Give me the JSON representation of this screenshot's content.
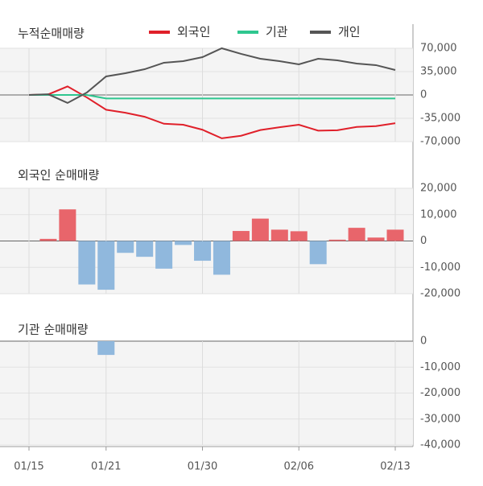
{
  "chart_data": [
    {
      "type": "line",
      "title": "누적순매매량",
      "categories": [
        "01/15",
        null,
        null,
        null,
        "01/21",
        null,
        null,
        null,
        null,
        "01/30",
        null,
        null,
        null,
        null,
        "02/06",
        null,
        null,
        null,
        null,
        "02/13"
      ],
      "series": [
        {
          "name": "외국인",
          "color": "#e0202a",
          "values": [
            0,
            800,
            12800,
            -3700,
            -22200,
            -26700,
            -32700,
            -43200,
            -44700,
            -52200,
            -65000,
            -61200,
            -52700,
            -48400,
            -44700,
            -53500,
            -53000,
            -48000,
            -46700,
            -42400
          ]
        },
        {
          "name": "기관",
          "color": "#2ec68f",
          "values": [
            0,
            0,
            0,
            0,
            -5300,
            -5300,
            -5300,
            -5300,
            -5300,
            -5300,
            -5300,
            -5300,
            -5300,
            -5300,
            -5300,
            -5300,
            -5300,
            -5300,
            -5300,
            -5300
          ]
        },
        {
          "name": "개인",
          "color": "#555555",
          "values": [
            0,
            1000,
            -12000,
            3600,
            27800,
            32600,
            38600,
            48300,
            50700,
            56700,
            70000,
            61600,
            54300,
            50700,
            45900,
            54300,
            51900,
            47100,
            44700,
            37400
          ]
        }
      ],
      "ylim": [
        -70000,
        70000
      ],
      "yticks": [
        {
          "value": 70000,
          "label": "70,000"
        },
        {
          "value": 35000,
          "label": "35,000"
        },
        0,
        {
          "value": -35000,
          "label": "-35,000"
        },
        {
          "value": -70000,
          "label": "-70,000"
        }
      ]
    },
    {
      "type": "bar",
      "title": "외국인 순매매량",
      "color": "#e8656b",
      "negative_color": "#90b8dd",
      "values": [
        0,
        800,
        12000,
        -16500,
        -18500,
        -4500,
        -6000,
        -10500,
        -1500,
        -7500,
        -12800,
        3800,
        8500,
        4300,
        3700,
        -8800,
        500,
        5000,
        1300,
        4300
      ],
      "ylim": [
        -20000,
        20000
      ],
      "yticks": [
        {
          "value": 20000,
          "label": "20,000"
        },
        {
          "value": 10000,
          "label": "10,000"
        },
        0,
        {
          "value": -10000,
          "label": "-10,000"
        },
        {
          "value": -20000,
          "label": "-20,000"
        }
      ]
    },
    {
      "type": "bar",
      "title": "기관 순매매량",
      "color": "#e8656b",
      "negative_color": "#90b8dd",
      "values": [
        0,
        0,
        0,
        0,
        -5300,
        0,
        0,
        0,
        0,
        0,
        0,
        0,
        0,
        0,
        0,
        0,
        0,
        0,
        0,
        0
      ],
      "ylim": [
        -40000,
        0
      ],
      "yticks": [
        0,
        {
          "value": -10000,
          "label": "-10,000"
        },
        {
          "value": -20000,
          "label": "-20,000"
        },
        {
          "value": -30000,
          "label": "-30,000"
        },
        {
          "value": -40000,
          "label": "-40,000"
        }
      ]
    }
  ]
}
